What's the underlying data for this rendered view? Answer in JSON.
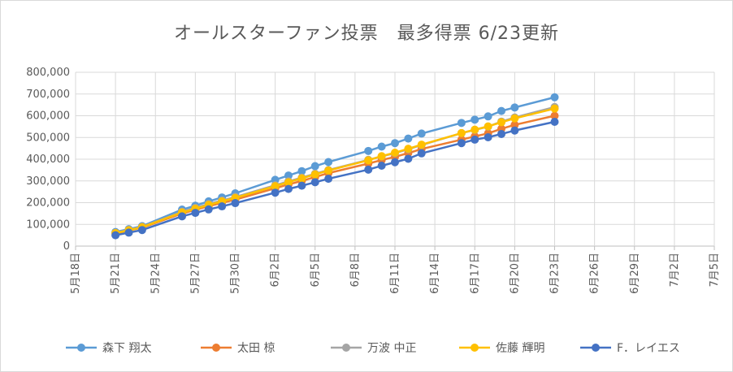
{
  "chart_data": {
    "type": "line",
    "title": "オールスターファン投票　最多得票 6/23更新",
    "xlabel": "",
    "ylabel": "",
    "ylim": [
      0,
      800000
    ],
    "yticks": [
      "0",
      "100,000",
      "200,000",
      "300,000",
      "400,000",
      "500,000",
      "600,000",
      "700,000",
      "800,000"
    ],
    "xticks": [
      "5月18日",
      "5月21日",
      "5月24日",
      "5月27日",
      "5月30日",
      "6月2日",
      "6月5日",
      "6月8日",
      "6月11日",
      "6月14日",
      "6月17日",
      "6月20日",
      "6月23日",
      "6月26日",
      "6月29日",
      "7月2日",
      "7月5日"
    ],
    "x": [
      "5月21日",
      "5月22日",
      "5月23日",
      "5月26日",
      "5月27日",
      "5月28日",
      "5月29日",
      "5月30日",
      "6月2日",
      "6月3日",
      "6月4日",
      "6月5日",
      "6月6日",
      "6月9日",
      "6月10日",
      "6月11日",
      "6月12日",
      "6月13日",
      "6月16日",
      "6月17日",
      "6月18日",
      "6月19日",
      "6月20日",
      "6月23日"
    ],
    "grid": true,
    "legend": "bottom",
    "series": [
      {
        "name": "森下 翔太",
        "color": "#5b9bd5",
        "values": [
          65000,
          78000,
          92000,
          168000,
          186000,
          206000,
          224000,
          243000,
          305000,
          325000,
          345000,
          368000,
          387000,
          438000,
          458000,
          474000,
          495000,
          518000,
          567000,
          582000,
          597000,
          622000,
          638000,
          685000
        ]
      },
      {
        "name": "太田 椋",
        "color": "#ed7d31",
        "values": [
          58000,
          72000,
          85000,
          150000,
          167000,
          184000,
          199000,
          214000,
          266000,
          284000,
          300000,
          318000,
          336000,
          380000,
          396000,
          411000,
          428000,
          447000,
          490000,
          505000,
          519000,
          540000,
          558000,
          600000
        ]
      },
      {
        "name": "万波 中正",
        "color": "#a5a5a5",
        "values": [
          61000,
          75000,
          89000,
          158000,
          176000,
          194000,
          210000,
          226000,
          280000,
          298000,
          315000,
          333000,
          350000,
          397000,
          413000,
          428000,
          446000,
          465000,
          520000,
          535000,
          550000,
          573000,
          592000,
          640000
        ]
      },
      {
        "name": "佐藤 輝明",
        "color": "#ffc000",
        "values": [
          60000,
          73000,
          87000,
          155000,
          172000,
          190000,
          206000,
          222000,
          276000,
          294000,
          312000,
          330000,
          348000,
          395000,
          414000,
          430000,
          448000,
          467000,
          520000,
          536000,
          551000,
          570000,
          588000,
          633000
        ]
      },
      {
        "name": "F．レイエス",
        "color": "#4472c4",
        "values": [
          50000,
          62000,
          74000,
          137000,
          153000,
          169000,
          183000,
          198000,
          246000,
          263000,
          278000,
          294000,
          310000,
          352000,
          370000,
          386000,
          402000,
          427000,
          474000,
          490000,
          501000,
          516000,
          532000,
          572000
        ]
      }
    ]
  }
}
